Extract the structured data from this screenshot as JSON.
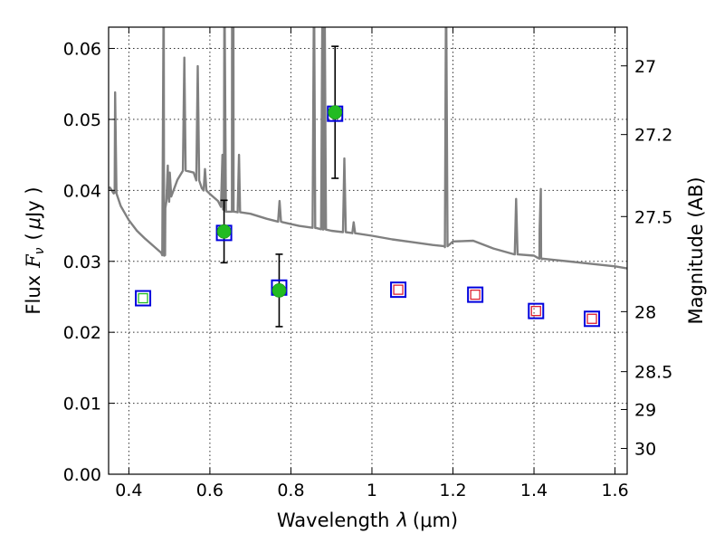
{
  "chart_data": {
    "type": "scatter",
    "xlabel_text": "Wavelength",
    "xlabel_symbol": "λ",
    "xlabel_unit": "(μm)",
    "ylabel_text": "Flux",
    "ylabel_symbol": "F",
    "ylabel_sub": "ν",
    "ylabel_unit_open": "(",
    "ylabel_unit_mu": "μ",
    "ylabel_unit_rest": "Jy )",
    "y2label": "Magnitude (AB)",
    "xlim": [
      0.35,
      1.63
    ],
    "ylim": [
      0.0,
      0.063
    ],
    "grid": true,
    "x_ticks": [
      {
        "v": 0.4,
        "label": "0.4"
      },
      {
        "v": 0.6,
        "label": "0.6"
      },
      {
        "v": 0.8,
        "label": "0.8"
      },
      {
        "v": 1.0,
        "label": "1"
      },
      {
        "v": 1.2,
        "label": "1.2"
      },
      {
        "v": 1.4,
        "label": "1.4"
      },
      {
        "v": 1.6,
        "label": "1.6"
      }
    ],
    "y_ticks": [
      {
        "v": 0.0,
        "label": "0.00"
      },
      {
        "v": 0.01,
        "label": "0.01"
      },
      {
        "v": 0.02,
        "label": "0.02"
      },
      {
        "v": 0.03,
        "label": "0.03"
      },
      {
        "v": 0.04,
        "label": "0.04"
      },
      {
        "v": 0.05,
        "label": "0.05"
      },
      {
        "v": 0.06,
        "label": "0.06"
      }
    ],
    "y2_ticks": [
      {
        "mag": 27,
        "label": "27"
      },
      {
        "mag": 27.2,
        "label": "27.2"
      },
      {
        "mag": 27.5,
        "label": "27.5"
      },
      {
        "mag": 28,
        "label": "28"
      },
      {
        "mag": 28.5,
        "label": "28.5"
      },
      {
        "mag": 29,
        "label": "29"
      },
      {
        "mag": 30,
        "label": "30"
      }
    ],
    "series": [
      {
        "kind": "model-spectrum",
        "color": "#808080",
        "continuum": [
          [
            0.352,
            0.0405
          ],
          [
            0.365,
            0.0397
          ],
          [
            0.38,
            0.0378
          ],
          [
            0.4,
            0.0358
          ],
          [
            0.42,
            0.0343
          ],
          [
            0.44,
            0.0332
          ],
          [
            0.46,
            0.0322
          ],
          [
            0.48,
            0.0312
          ],
          [
            0.487,
            0.0308
          ],
          [
            0.49,
            0.0375
          ],
          [
            0.5,
            0.039
          ],
          [
            0.52,
            0.0415
          ],
          [
            0.54,
            0.043
          ],
          [
            0.56,
            0.0425
          ],
          [
            0.58,
            0.0403
          ],
          [
            0.6,
            0.0395
          ],
          [
            0.62,
            0.0385
          ],
          [
            0.64,
            0.037
          ],
          [
            0.66,
            0.037
          ],
          [
            0.7,
            0.0367
          ],
          [
            0.74,
            0.036
          ],
          [
            0.78,
            0.0355
          ],
          [
            0.82,
            0.035
          ],
          [
            0.86,
            0.0347
          ],
          [
            0.9,
            0.0343
          ],
          [
            0.95,
            0.034
          ],
          [
            1.0,
            0.0336
          ],
          [
            1.05,
            0.0331
          ],
          [
            1.1,
            0.0327
          ],
          [
            1.15,
            0.0323
          ],
          [
            1.18,
            0.032
          ],
          [
            1.2,
            0.0328
          ],
          [
            1.25,
            0.0329
          ],
          [
            1.3,
            0.0318
          ],
          [
            1.35,
            0.031
          ],
          [
            1.4,
            0.0308
          ],
          [
            1.42,
            0.0303
          ],
          [
            1.45,
            0.0302
          ],
          [
            1.5,
            0.0299
          ],
          [
            1.55,
            0.0296
          ],
          [
            1.6,
            0.0293
          ],
          [
            1.63,
            0.029
          ]
        ],
        "lines": [
          [
            0.366,
            0.0538
          ],
          [
            0.486,
            0.07
          ],
          [
            0.496,
            0.0435
          ],
          [
            0.501,
            0.0425
          ],
          [
            0.537,
            0.0587
          ],
          [
            0.57,
            0.0575
          ],
          [
            0.588,
            0.043
          ],
          [
            0.631,
            0.045
          ],
          [
            0.636,
            0.07
          ],
          [
            0.655,
            0.07
          ],
          [
            0.658,
            0.07
          ],
          [
            0.672,
            0.045
          ],
          [
            0.671,
            0.043
          ],
          [
            0.772,
            0.0385
          ],
          [
            0.857,
            0.07
          ],
          [
            0.878,
            0.07
          ],
          [
            0.883,
            0.07
          ],
          [
            0.932,
            0.0445
          ],
          [
            0.955,
            0.0355
          ],
          [
            1.183,
            0.07
          ],
          [
            1.356,
            0.0388
          ],
          [
            1.417,
            0.0402
          ],
          [
            1.414,
            0.0345
          ]
        ]
      },
      {
        "kind": "observed",
        "marker": "circle",
        "color": "#22bb22",
        "points": [
          {
            "x": 0.635,
            "y": 0.0342,
            "err": 0.0044
          },
          {
            "x": 0.771,
            "y": 0.0259,
            "err": 0.0051
          },
          {
            "x": 0.909,
            "y": 0.051,
            "err": 0.0093
          }
        ]
      },
      {
        "kind": "model-photometry",
        "marker": "square",
        "edge_color": "#0000dd",
        "points": [
          {
            "x": 0.435,
            "y": 0.0248
          },
          {
            "x": 0.635,
            "y": 0.034
          },
          {
            "x": 0.771,
            "y": 0.0263
          },
          {
            "x": 0.909,
            "y": 0.0508
          },
          {
            "x": 1.065,
            "y": 0.026
          },
          {
            "x": 1.255,
            "y": 0.0253
          },
          {
            "x": 1.405,
            "y": 0.023
          },
          {
            "x": 1.543,
            "y": 0.0219
          }
        ]
      },
      {
        "kind": "inner-square",
        "marker": "square",
        "points": [
          {
            "x": 0.435,
            "y": 0.0248,
            "color": "#22bb22"
          },
          {
            "x": 1.065,
            "y": 0.026,
            "color": "#dd2233"
          },
          {
            "x": 1.255,
            "y": 0.0253,
            "color": "#dd2233"
          },
          {
            "x": 1.405,
            "y": 0.023,
            "color": "#dd2233"
          },
          {
            "x": 1.543,
            "y": 0.0219,
            "color": "#dd2233"
          }
        ]
      }
    ]
  }
}
